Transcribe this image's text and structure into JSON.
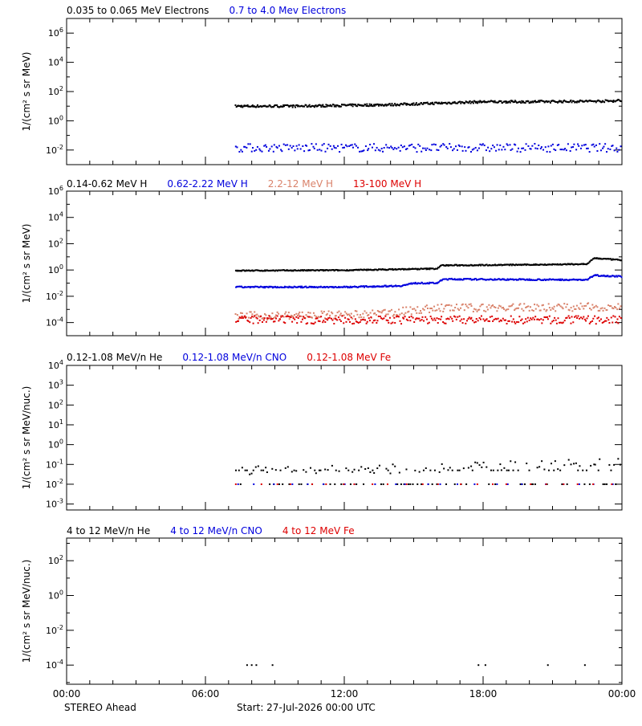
{
  "colors": {
    "black": "#000000",
    "blue": "#0000dd",
    "salmon": "#d9826a",
    "red": "#dd0000"
  },
  "footer": {
    "spacecraft": "STEREO Ahead",
    "start": "Start: 27-Jul-2026 00:00 UTC"
  },
  "time_ticks": [
    "00:00",
    "06:00",
    "12:00",
    "18:00",
    "00:00"
  ],
  "chart_data": [
    {
      "type": "scatter",
      "ylabel": "1/(cm² s sr MeV)",
      "yscale": "log",
      "ylim_exp": [
        -3,
        7
      ],
      "ytick_exp": [
        -2,
        0,
        2,
        4,
        6
      ],
      "xlim_hours": [
        0,
        24
      ],
      "legend": [
        {
          "label": "0.035 to 0.065 MeV Electrons",
          "color": "#000000"
        },
        {
          "label": "0.7 to 4.0 Mev Electrons",
          "color": "#0000dd"
        }
      ],
      "series": [
        {
          "name": "0.035 to 0.065 MeV Electrons",
          "color": "#000000",
          "x_hours": [
            7.3,
            10,
            14,
            16,
            18,
            20,
            23.5,
            24
          ],
          "log10_y": [
            1.0,
            1.0,
            1.1,
            1.2,
            1.3,
            1.3,
            1.35,
            1.4
          ],
          "jitter": 0.08,
          "density": 2.4
        },
        {
          "name": "0.7 to 4.0 Mev Electrons",
          "color": "#0000dd",
          "x_hours": [
            7.3,
            24
          ],
          "log10_y": [
            -1.85,
            -1.85
          ],
          "jitter": 0.28,
          "density": 1.3
        }
      ]
    },
    {
      "type": "scatter",
      "ylabel": "1/(cm² s sr MeV)",
      "yscale": "log",
      "ylim_exp": [
        -5,
        6
      ],
      "ytick_exp": [
        -4,
        -2,
        0,
        2,
        4,
        6
      ],
      "xlim_hours": [
        0,
        24
      ],
      "legend": [
        {
          "label": "0.14-0.62 MeV H",
          "color": "#000000"
        },
        {
          "label": "0.62-2.22 MeV H",
          "color": "#0000dd"
        },
        {
          "label": "2.2-12 MeV H",
          "color": "#d9826a"
        },
        {
          "label": "13-100 MeV H",
          "color": "#dd0000"
        }
      ],
      "series": [
        {
          "name": "0.14-0.62 MeV H",
          "color": "#000000",
          "x_hours": [
            7.3,
            12,
            16,
            16.2,
            20,
            22.5,
            22.8,
            24
          ],
          "log10_y": [
            -0.05,
            -0.02,
            0.1,
            0.35,
            0.4,
            0.45,
            0.9,
            0.75
          ],
          "jitter": 0.04,
          "density": 2.4
        },
        {
          "name": "0.62-2.22 MeV H",
          "color": "#0000dd",
          "x_hours": [
            7.3,
            12,
            14.5,
            15,
            16,
            16.3,
            22.5,
            22.8,
            24
          ],
          "log10_y": [
            -1.3,
            -1.3,
            -1.2,
            -1.0,
            -1.0,
            -0.7,
            -0.75,
            -0.4,
            -0.5
          ],
          "jitter": 0.05,
          "density": 2.4
        },
        {
          "name": "2.2-12 MeV H",
          "color": "#d9826a",
          "x_hours": [
            7.3,
            13,
            16,
            24
          ],
          "log10_y": [
            -3.5,
            -3.4,
            -2.9,
            -2.8
          ],
          "jitter": 0.3,
          "density": 1.6
        },
        {
          "name": "13-100 MeV H",
          "color": "#dd0000",
          "x_hours": [
            7.3,
            24
          ],
          "log10_y": [
            -3.8,
            -3.8
          ],
          "jitter": 0.3,
          "density": 1.6
        }
      ]
    },
    {
      "type": "scatter",
      "ylabel": "1/(cm² s sr MeV/nuc.)",
      "yscale": "log",
      "ylim_exp": [
        -3.3,
        4
      ],
      "ytick_exp": [
        -3,
        -2,
        -1,
        0,
        1,
        2,
        3,
        4
      ],
      "xlim_hours": [
        0,
        24
      ],
      "legend": [
        {
          "label": "0.12-1.08 MeV/n He",
          "color": "#000000"
        },
        {
          "label": "0.12-1.08 MeV/n CNO",
          "color": "#0000dd"
        },
        {
          "label": "0.12-1.08 MeV Fe",
          "color": "#dd0000"
        }
      ],
      "series": [
        {
          "name": "0.12-1.08 MeV/n He",
          "color": "#000000",
          "x_hours": [
            7.3,
            16,
            24
          ],
          "log10_y": [
            -1.3,
            -1.2,
            -0.9
          ],
          "jitter": 0.25,
          "density": 0.9
        },
        {
          "name": "0.12-1.08 MeV/n CNO",
          "color": "#0000dd",
          "x_hours": [
            7.3,
            24
          ],
          "log10_y": [
            -2.0,
            -2.0
          ],
          "jitter": 0.0,
          "density": 0.12
        },
        {
          "name": "0.12-1.08 MeV Fe",
          "color": "#dd0000",
          "x_hours": [
            7.3,
            24
          ],
          "log10_y": [
            -2.0,
            -2.0
          ],
          "jitter": 0.0,
          "density": 0.12
        }
      ]
    },
    {
      "type": "scatter",
      "ylabel": "1/(cm² s sr MeV/nuc.)",
      "yscale": "log",
      "ylim_exp": [
        -5.1,
        3.3
      ],
      "ytick_exp": [
        -4,
        -2,
        0,
        2
      ],
      "xlim_hours": [
        0,
        24
      ],
      "legend": [
        {
          "label": "4 to 12 MeV/n He",
          "color": "#000000"
        },
        {
          "label": "4 to 12 MeV/n CNO",
          "color": "#0000dd"
        },
        {
          "label": "4 to 12 MeV Fe",
          "color": "#dd0000"
        }
      ],
      "series": [
        {
          "name": "4 to 12 MeV/n He",
          "color": "#000000",
          "points_hours": [
            7.8,
            8.0,
            8.2,
            8.9,
            17.8,
            18.1,
            20.8,
            22.4
          ],
          "log10_y": -4.0
        }
      ]
    }
  ]
}
